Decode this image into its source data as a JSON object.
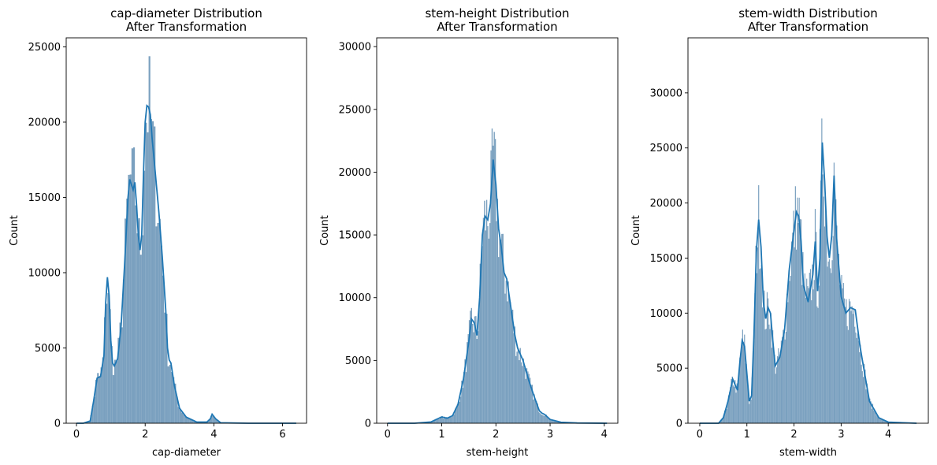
{
  "chart_data": [
    {
      "type": "histogram",
      "title_line1": "cap-diameter Distribution",
      "title_line2": "After Transformation",
      "xlabel": "cap-diameter",
      "ylabel": "Count",
      "xlim": [
        -0.3,
        6.7
      ],
      "ylim": [
        0,
        25600
      ],
      "xticks": [
        0,
        2,
        4,
        6
      ],
      "yticks": [
        0,
        5000,
        10000,
        15000,
        20000,
        25000
      ],
      "bin_width": 0.05,
      "bar_color": "#6b96b8",
      "kde_color": "#1f77b4",
      "kde": [
        [
          0.0,
          0
        ],
        [
          0.2,
          0
        ],
        [
          0.4,
          150
        ],
        [
          0.5,
          1500
        ],
        [
          0.6,
          3000
        ],
        [
          0.7,
          3100
        ],
        [
          0.8,
          4500
        ],
        [
          0.85,
          8000
        ],
        [
          0.9,
          9700
        ],
        [
          0.95,
          8500
        ],
        [
          1.0,
          5500
        ],
        [
          1.05,
          4000
        ],
        [
          1.1,
          3800
        ],
        [
          1.2,
          4300
        ],
        [
          1.3,
          6500
        ],
        [
          1.4,
          10500
        ],
        [
          1.5,
          15000
        ],
        [
          1.55,
          16200
        ],
        [
          1.65,
          15500
        ],
        [
          1.7,
          16000
        ],
        [
          1.75,
          14500
        ],
        [
          1.8,
          12500
        ],
        [
          1.85,
          11500
        ],
        [
          1.9,
          12500
        ],
        [
          1.95,
          16500
        ],
        [
          2.0,
          20000
        ],
        [
          2.05,
          21100
        ],
        [
          2.1,
          21000
        ],
        [
          2.15,
          20500
        ],
        [
          2.2,
          19000
        ],
        [
          2.3,
          16500
        ],
        [
          2.4,
          14000
        ],
        [
          2.5,
          11000
        ],
        [
          2.6,
          7500
        ],
        [
          2.65,
          5000
        ],
        [
          2.7,
          4200
        ],
        [
          2.75,
          4000
        ],
        [
          2.85,
          2500
        ],
        [
          3.0,
          1000
        ],
        [
          3.2,
          400
        ],
        [
          3.5,
          80
        ],
        [
          3.8,
          80
        ],
        [
          3.9,
          300
        ],
        [
          3.95,
          600
        ],
        [
          4.05,
          300
        ],
        [
          4.2,
          30
        ],
        [
          5.0,
          0
        ],
        [
          6.4,
          0
        ]
      ]
    },
    {
      "type": "histogram",
      "title_line1": "stem-height Distribution",
      "title_line2": "After Transformation",
      "xlabel": "stem-height",
      "ylabel": "Count",
      "xlim": [
        -0.2,
        4.25
      ],
      "ylim": [
        0,
        30700
      ],
      "xticks": [
        0,
        1,
        2,
        3,
        4
      ],
      "yticks": [
        0,
        5000,
        10000,
        15000,
        20000,
        25000,
        30000
      ],
      "bin_width": 0.02,
      "bar_color": "#6b96b8",
      "kde_color": "#1f77b4",
      "kde": [
        [
          0.0,
          0
        ],
        [
          0.5,
          0
        ],
        [
          0.8,
          100
        ],
        [
          0.9,
          300
        ],
        [
          1.0,
          500
        ],
        [
          1.1,
          400
        ],
        [
          1.2,
          600
        ],
        [
          1.3,
          1500
        ],
        [
          1.4,
          3500
        ],
        [
          1.5,
          6500
        ],
        [
          1.55,
          8300
        ],
        [
          1.6,
          8000
        ],
        [
          1.65,
          7000
        ],
        [
          1.7,
          10000
        ],
        [
          1.75,
          15000
        ],
        [
          1.8,
          16500
        ],
        [
          1.85,
          16200
        ],
        [
          1.9,
          17500
        ],
        [
          1.95,
          21000
        ],
        [
          2.0,
          19000
        ],
        [
          2.05,
          15500
        ],
        [
          2.1,
          14000
        ],
        [
          2.15,
          12000
        ],
        [
          2.2,
          11500
        ],
        [
          2.25,
          10000
        ],
        [
          2.3,
          8500
        ],
        [
          2.35,
          7000
        ],
        [
          2.4,
          6000
        ],
        [
          2.5,
          5000
        ],
        [
          2.6,
          3500
        ],
        [
          2.7,
          2200
        ],
        [
          2.8,
          1000
        ],
        [
          2.85,
          800
        ],
        [
          2.9,
          700
        ],
        [
          3.0,
          300
        ],
        [
          3.2,
          80
        ],
        [
          3.5,
          20
        ],
        [
          4.05,
          0
        ]
      ]
    },
    {
      "type": "histogram",
      "title_line1": "stem-width Distribution",
      "title_line2": "After Transformation",
      "xlabel": "stem-width",
      "ylabel": "Count",
      "xlim": [
        -0.25,
        4.85
      ],
      "ylim": [
        0,
        35000
      ],
      "xticks": [
        0,
        1,
        2,
        3,
        4
      ],
      "yticks": [
        0,
        5000,
        10000,
        15000,
        20000,
        25000,
        30000
      ],
      "bin_width": 0.02,
      "bar_color": "#6b96b8",
      "kde_color": "#1f77b4",
      "kde": [
        [
          0.0,
          0
        ],
        [
          0.4,
          0
        ],
        [
          0.5,
          500
        ],
        [
          0.6,
          2000
        ],
        [
          0.7,
          4000
        ],
        [
          0.75,
          3500
        ],
        [
          0.8,
          3000
        ],
        [
          0.85,
          5500
        ],
        [
          0.9,
          7500
        ],
        [
          0.95,
          7000
        ],
        [
          1.0,
          4500
        ],
        [
          1.05,
          2000
        ],
        [
          1.1,
          2500
        ],
        [
          1.15,
          8000
        ],
        [
          1.2,
          15500
        ],
        [
          1.25,
          18500
        ],
        [
          1.3,
          16000
        ],
        [
          1.35,
          11000
        ],
        [
          1.4,
          9500
        ],
        [
          1.45,
          10500
        ],
        [
          1.5,
          10000
        ],
        [
          1.55,
          7500
        ],
        [
          1.6,
          5200
        ],
        [
          1.7,
          6000
        ],
        [
          1.8,
          8500
        ],
        [
          1.9,
          14000
        ],
        [
          2.0,
          17500
        ],
        [
          2.05,
          19200
        ],
        [
          2.1,
          18800
        ],
        [
          2.15,
          16500
        ],
        [
          2.2,
          12500
        ],
        [
          2.3,
          11000
        ],
        [
          2.4,
          13500
        ],
        [
          2.45,
          16500
        ],
        [
          2.5,
          12000
        ],
        [
          2.55,
          15000
        ],
        [
          2.6,
          25500
        ],
        [
          2.65,
          22000
        ],
        [
          2.7,
          17000
        ],
        [
          2.75,
          15000
        ],
        [
          2.8,
          17000
        ],
        [
          2.85,
          22500
        ],
        [
          2.9,
          17000
        ],
        [
          3.0,
          11500
        ],
        [
          3.1,
          10000
        ],
        [
          3.2,
          10500
        ],
        [
          3.3,
          10300
        ],
        [
          3.4,
          7000
        ],
        [
          3.5,
          4500
        ],
        [
          3.6,
          2000
        ],
        [
          3.8,
          500
        ],
        [
          4.0,
          100
        ],
        [
          4.6,
          0
        ]
      ]
    }
  ]
}
